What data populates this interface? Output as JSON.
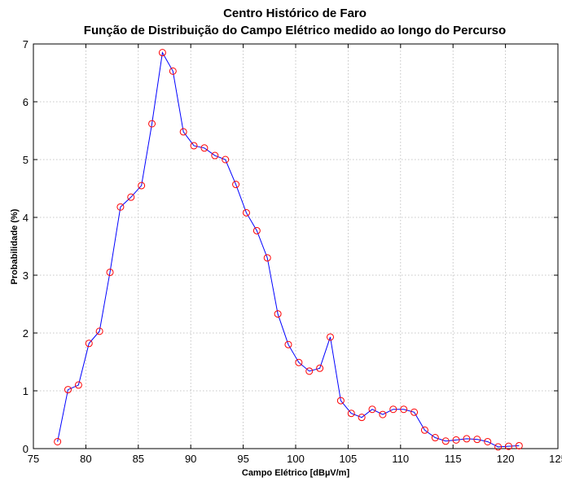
{
  "chart_data": {
    "type": "line",
    "title": [
      "Centro Histórico de Faro",
      "Função de Distribuição do Campo Elétrico medido ao longo do Percurso"
    ],
    "xlabel": "Campo Elétrico [dBµV/m]",
    "ylabel": "Probabilidade (%)",
    "xlim": [
      75,
      125
    ],
    "ylim": [
      0,
      7
    ],
    "xticks": [
      75,
      80,
      85,
      90,
      95,
      100,
      105,
      110,
      115,
      120,
      125
    ],
    "yticks": [
      0,
      1,
      2,
      3,
      4,
      5,
      6,
      7
    ],
    "grid": true,
    "colors": {
      "line": "#0000ff",
      "marker": "#ff0000"
    },
    "series": [
      {
        "x": [
          77.3,
          78.3,
          79.3,
          80.3,
          81.3,
          82.3,
          83.3,
          84.3,
          85.3,
          86.3,
          87.3,
          88.3,
          89.3,
          90.3,
          91.3,
          92.3,
          93.3,
          94.3,
          95.3,
          96.3,
          97.3,
          98.3,
          99.3,
          100.3,
          101.3,
          102.3,
          103.3,
          104.3,
          105.3,
          106.3,
          107.3,
          108.3,
          109.3,
          110.3,
          111.3,
          112.3,
          113.3,
          114.3,
          115.3,
          116.3,
          117.3,
          118.3,
          119.3,
          120.3,
          121.3
        ],
        "y": [
          0.12,
          1.02,
          1.1,
          1.82,
          2.03,
          3.05,
          4.18,
          4.35,
          4.55,
          5.62,
          6.85,
          6.53,
          5.48,
          5.24,
          5.2,
          5.07,
          5.0,
          4.57,
          4.08,
          3.77,
          3.3,
          2.33,
          1.8,
          1.49,
          1.34,
          1.39,
          1.93,
          0.83,
          0.61,
          0.54,
          0.68,
          0.59,
          0.68,
          0.68,
          0.63,
          0.32,
          0.19,
          0.13,
          0.15,
          0.17,
          0.16,
          0.12,
          0.03,
          0.04,
          0.05
        ]
      }
    ]
  }
}
